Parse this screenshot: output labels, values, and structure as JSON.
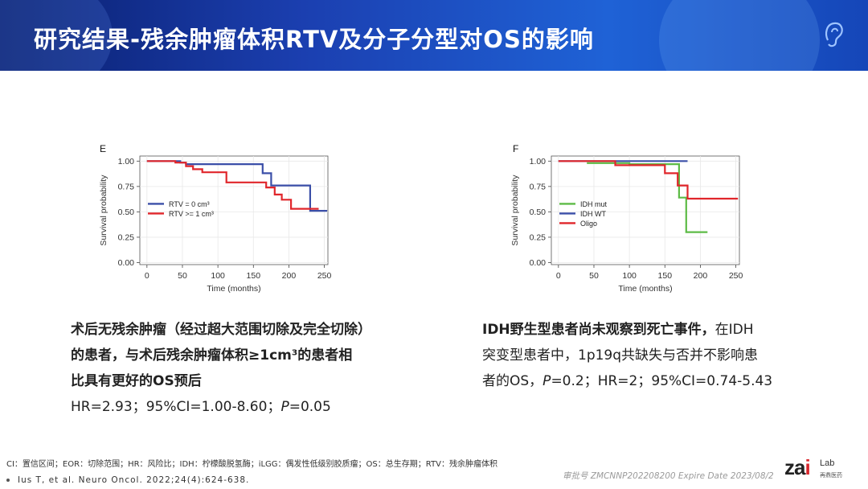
{
  "header": {
    "title": "研究结果-残余肿瘤体积RTV及分子分型对OS的影响"
  },
  "chart_data": [
    {
      "panel": "E",
      "type": "line",
      "ylabel": "Survival probability",
      "xlabel": "Time (months)",
      "xlim": [
        -10,
        255
      ],
      "ylim": [
        -0.02,
        1.05
      ],
      "xticks": [
        0,
        50,
        100,
        150,
        200,
        250
      ],
      "yticks": [
        0.0,
        0.25,
        0.5,
        0.75,
        1.0
      ],
      "yticklabels": [
        "0.00",
        "0.25",
        "0.50",
        "0.75",
        "1.00"
      ],
      "legend": "middle-left",
      "series": [
        {
          "name": "RTV = 0 cm³",
          "color": "#3b4fa8",
          "points": [
            [
              0,
              1.0
            ],
            [
              47,
              1.0
            ],
            [
              47,
              0.985
            ],
            [
              55,
              0.985
            ],
            [
              55,
              0.97
            ],
            [
              163,
              0.97
            ],
            [
              163,
              0.88
            ],
            [
              175,
              0.88
            ],
            [
              175,
              0.76
            ],
            [
              230,
              0.76
            ],
            [
              230,
              0.51
            ],
            [
              254,
              0.51
            ]
          ]
        },
        {
          "name": "RTV >= 1 cm³",
          "color": "#e0262b",
          "points": [
            [
              0,
              1.0
            ],
            [
              40,
              1.0
            ],
            [
              40,
              0.985
            ],
            [
              55,
              0.985
            ],
            [
              55,
              0.95
            ],
            [
              65,
              0.95
            ],
            [
              65,
              0.92
            ],
            [
              78,
              0.92
            ],
            [
              78,
              0.89
            ],
            [
              112,
              0.89
            ],
            [
              112,
              0.79
            ],
            [
              168,
              0.79
            ],
            [
              168,
              0.74
            ],
            [
              180,
              0.74
            ],
            [
              180,
              0.67
            ],
            [
              190,
              0.67
            ],
            [
              190,
              0.62
            ],
            [
              203,
              0.62
            ],
            [
              203,
              0.53
            ],
            [
              242,
              0.53
            ]
          ]
        }
      ]
    },
    {
      "panel": "F",
      "type": "line",
      "ylabel": "Survival probability",
      "xlabel": "Time (months)",
      "xlim": [
        -10,
        255
      ],
      "ylim": [
        -0.02,
        1.05
      ],
      "xticks": [
        0,
        50,
        100,
        150,
        200,
        250
      ],
      "yticks": [
        0.0,
        0.25,
        0.5,
        0.75,
        1.0
      ],
      "yticklabels": [
        "0.00",
        "0.25",
        "0.50",
        "0.75",
        "1.00"
      ],
      "legend": "middle-left",
      "series": [
        {
          "name": "IDH mut",
          "color": "#5dbb46",
          "points": [
            [
              40,
              0.98
            ],
            [
              100,
              0.98
            ],
            [
              100,
              0.97
            ],
            [
              170,
              0.97
            ],
            [
              170,
              0.64
            ],
            [
              180,
              0.64
            ],
            [
              180,
              0.3
            ],
            [
              210,
              0.3
            ]
          ]
        },
        {
          "name": "IDH WT",
          "color": "#3b4fa8",
          "points": [
            [
              0,
              1.0
            ],
            [
              182,
              1.0
            ]
          ]
        },
        {
          "name": "Oligo",
          "color": "#e0262b",
          "points": [
            [
              0,
              1.0
            ],
            [
              80,
              1.0
            ],
            [
              80,
              0.96
            ],
            [
              150,
              0.96
            ],
            [
              150,
              0.88
            ],
            [
              168,
              0.88
            ],
            [
              168,
              0.76
            ],
            [
              182,
              0.76
            ],
            [
              182,
              0.63
            ],
            [
              253,
              0.63
            ]
          ]
        }
      ]
    }
  ],
  "text_left": {
    "line1": "术后无残余肿瘤（经过超大范围切除及完全切除）",
    "line2": "的患者，与术后残余肿瘤体积≥1cm³的患者相",
    "line3": "比具有更好的OS预后",
    "stat_prefix": "HR=2.93；95%CI=1.00-8.60；",
    "p_label": "P",
    "p_value": "=0.05"
  },
  "text_right": {
    "bold": "IDH野生型患者尚未观察到死亡事件，",
    "line1_rest": "在IDH",
    "line2": "突变型患者中，1p19q共缺失与否并不影响患",
    "line3_prefix": "者的OS，",
    "p_label": "P",
    "line3_suffix": "=0.2；HR=2；95%CI=0.74-5.43"
  },
  "footer": {
    "abbreviations": "CI：置信区间；EOR：切除范围；HR：风险比；IDH：柠檬酸脱氢酶；iLGG：偶发性低级别胶质瘤；OS：总生存期；RTV：残余肿瘤体积",
    "reference": "Ius T, et al. Neuro Oncol. 2022;24(4):624-638.",
    "approval": "审批号 ZMCNNP202208200 Expire Date 2023/08/2",
    "logo_main_a": "za",
    "logo_main_b": "i",
    "logo_sub": "Lab",
    "logo_cn": "再鼎医药"
  }
}
